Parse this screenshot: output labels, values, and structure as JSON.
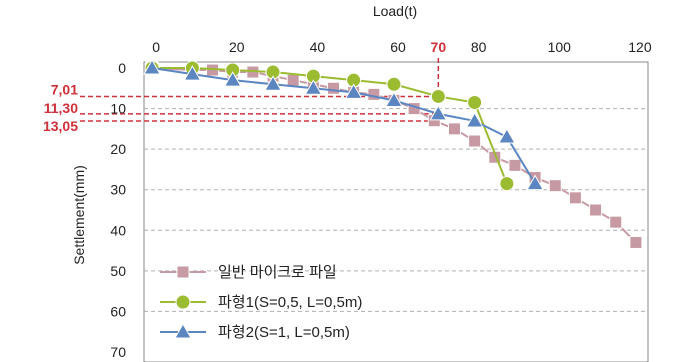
{
  "chart_data": {
    "type": "line",
    "title": "",
    "xlabel": "Load(t)",
    "ylabel": "Settlement(mm)",
    "xlim": [
      -3,
      122
    ],
    "ylim": [
      0,
      70
    ],
    "y_inverted": true,
    "x_axis_position": "top",
    "x_ticks": [
      0,
      20,
      40,
      60,
      80,
      100,
      120
    ],
    "x_tick_labels": [
      "0",
      "20",
      "40",
      "60",
      "80",
      "100",
      "120"
    ],
    "y_ticks": [
      0,
      10,
      20,
      30,
      40,
      50,
      60,
      70
    ],
    "y_tick_labels": [
      "0",
      "10",
      "20",
      "30",
      "40",
      "50",
      "60",
      "70"
    ],
    "grid": true,
    "legend_position": "bottom-left",
    "reference": {
      "x_value": 70,
      "x_label": "70",
      "y_values": [
        7.01,
        11.3,
        13.05
      ],
      "y_labels": [
        "7,01",
        "11,30",
        "13,05"
      ],
      "color": "#d0303a"
    },
    "series": [
      {
        "name": "일반 마이크로 파일",
        "marker": "square",
        "color": "#c79aa3",
        "x": [
          -1,
          9,
          14,
          19,
          24,
          29,
          34,
          39,
          44,
          49,
          54,
          59,
          64,
          69,
          74,
          79,
          84,
          89,
          94,
          99,
          104,
          109,
          114,
          119
        ],
        "y": [
          0,
          0.5,
          0.5,
          1,
          1,
          2,
          3,
          4,
          5,
          6,
          6.5,
          8,
          10,
          13,
          15,
          18,
          22,
          24,
          27,
          29,
          32,
          35,
          38,
          43
        ]
      },
      {
        "name": "파형1(S=0,5,  L=0,5m)",
        "marker": "circle",
        "color": "#9bbb30",
        "x": [
          -1,
          9,
          19,
          29,
          39,
          49,
          59,
          70,
          79,
          87
        ],
        "y": [
          0,
          0,
          0.5,
          1,
          2,
          3,
          4,
          7.01,
          8.5,
          28.5
        ]
      },
      {
        "name": "파형2(S=1,  L=0,5m)",
        "marker": "triangle",
        "color": "#5b86c2",
        "x": [
          -1,
          9,
          19,
          29,
          39,
          49,
          59,
          70,
          79,
          87,
          94
        ],
        "y": [
          0,
          1.5,
          3,
          4,
          5,
          6,
          8,
          11.3,
          13.05,
          17,
          28.5
        ]
      }
    ]
  }
}
